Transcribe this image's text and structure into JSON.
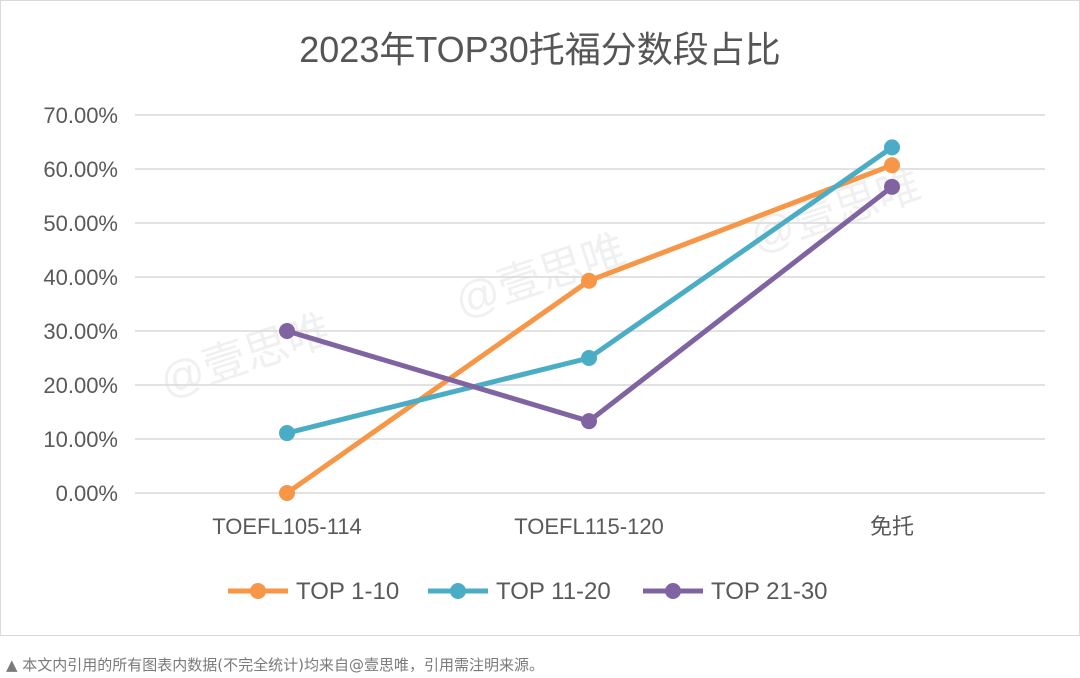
{
  "chart_data": {
    "type": "line",
    "title": "2023年TOP30托福分数段占比",
    "categories": [
      "TOEFL105-114",
      "TOEFL115-120",
      "免托"
    ],
    "ylim": [
      0,
      70
    ],
    "yticks": [
      0,
      10,
      20,
      30,
      40,
      50,
      60,
      70
    ],
    "ytick_labels": [
      "0.00%",
      "10.00%",
      "20.00%",
      "30.00%",
      "40.00%",
      "50.00%",
      "60.00%",
      "70.00%"
    ],
    "grid": true,
    "legend_position": "bottom",
    "series": [
      {
        "name": "TOP 1-10",
        "color": "#f79646",
        "values": [
          0,
          39.3,
          60.7
        ]
      },
      {
        "name": "TOP 11-20",
        "color": "#4bacc6",
        "values": [
          11.1,
          25.0,
          64.0
        ]
      },
      {
        "name": "TOP 21-30",
        "color": "#8064a2",
        "values": [
          30.0,
          13.3,
          56.7
        ]
      }
    ],
    "watermark": "@壹思唯"
  },
  "footnote": "▲ 本文内引用的所有图表内数据(不完全统计)均来自@壹思唯，引用需注明来源。"
}
